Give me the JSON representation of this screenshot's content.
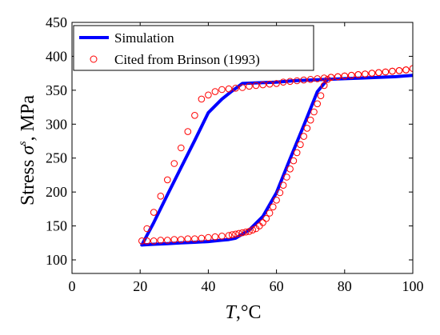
{
  "chart_data": {
    "type": "line",
    "xlabel": {
      "symbol": "T",
      "unit": ",°C"
    },
    "ylabel": {
      "prefix": "Stress",
      "symbol": "σ",
      "superscript": "s",
      "unit": ", MPa"
    },
    "xlim": [
      0,
      100
    ],
    "ylim": [
      80,
      450
    ],
    "x_ticks": [
      0,
      20,
      40,
      60,
      80,
      100
    ],
    "y_ticks": [
      100,
      150,
      200,
      250,
      300,
      350,
      400,
      450
    ],
    "grid": false,
    "legend_position": "top-left",
    "series": [
      {
        "name": "Simulation",
        "style": "line",
        "color": "#0000ff",
        "x": [
          20.5,
          24,
          28,
          32,
          36,
          40,
          44,
          47,
          50,
          55,
          60,
          65,
          70,
          75,
          80,
          85,
          90,
          95,
          100,
          100,
          95,
          90,
          85,
          80,
          75,
          72,
          68,
          64,
          60,
          56,
          52,
          48,
          46,
          44,
          40,
          36,
          32,
          28,
          24,
          20.5
        ],
        "y": [
          122,
          155,
          196,
          236,
          276,
          317,
          337,
          349,
          360,
          361,
          362,
          364,
          365,
          366,
          367,
          368,
          369,
          370,
          372,
          372,
          370,
          369,
          368,
          367,
          366,
          348,
          298,
          249,
          199,
          164,
          144,
          132,
          130,
          129,
          127,
          126,
          125,
          124,
          123,
          122
        ]
      },
      {
        "name": "Cited from Brinson (1993)",
        "style": "markers",
        "marker": "open-circle",
        "color": "#ff0000",
        "x": [
          20.5,
          22,
          24,
          26,
          28,
          30,
          32,
          34,
          36,
          38,
          40,
          42,
          44,
          46,
          48,
          50,
          52,
          54,
          56,
          58,
          60,
          62,
          64,
          66,
          68,
          70,
          72,
          74,
          76,
          78,
          80,
          82,
          84,
          86,
          88,
          90,
          92,
          94,
          96,
          98,
          100,
          98,
          96,
          94,
          92,
          90,
          88,
          86,
          84,
          82,
          80,
          78,
          76,
          75,
          74,
          73,
          72,
          71,
          70,
          69,
          68,
          67,
          66,
          65,
          64,
          63,
          62,
          61,
          60,
          59,
          58,
          57,
          56,
          55,
          54,
          53,
          52,
          51,
          50,
          49,
          48,
          47,
          46,
          44,
          42,
          40,
          38,
          36,
          34,
          32,
          30,
          28,
          26,
          24,
          22
        ],
        "y": [
          128,
          146,
          170,
          194,
          218,
          242,
          265,
          289,
          313,
          337,
          343,
          348,
          351,
          352,
          353,
          354,
          356,
          357,
          358,
          359,
          360,
          362,
          363,
          364,
          365,
          366,
          367,
          368,
          369,
          370,
          371,
          372,
          373,
          374,
          375,
          376,
          377,
          378,
          379,
          380,
          382,
          380,
          379,
          378,
          377,
          376,
          375,
          374,
          373,
          372,
          371,
          370,
          369,
          366,
          357,
          342,
          330,
          318,
          306,
          294,
          282,
          270,
          258,
          246,
          234,
          222,
          210,
          199,
          188,
          178,
          169,
          161,
          155,
          150,
          146,
          144,
          142,
          141,
          140,
          139,
          138,
          137,
          136,
          135,
          134,
          133,
          132,
          131,
          131,
          130,
          130,
          129,
          129,
          128,
          128
        ]
      }
    ]
  }
}
